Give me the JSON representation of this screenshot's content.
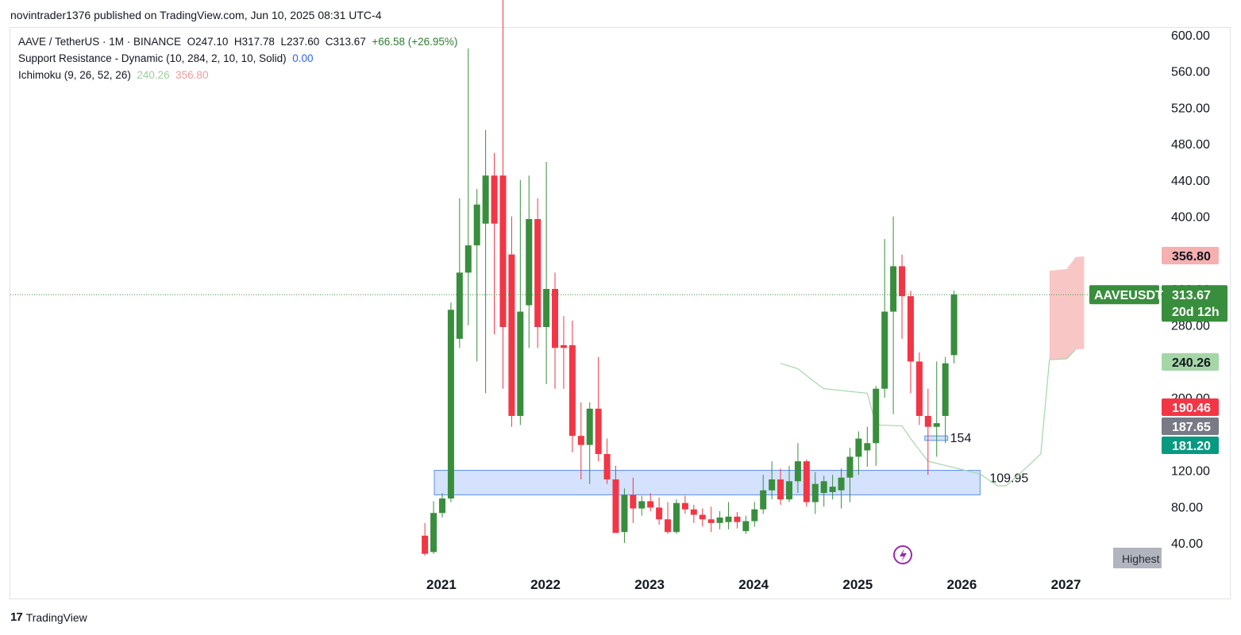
{
  "header": {
    "publisher": "novintrader1376 published on TradingView.com, Jun 10, 2025 08:31 UTC-4"
  },
  "legend": {
    "symbol": "AAVE / TetherUS · 1M · BINANCE",
    "open": "O247.10",
    "high": "H317.78",
    "low": "L237.60",
    "close": "C313.67",
    "change": "+66.58 (+26.95%)",
    "sr_name": "Support Resistance - Dynamic (10, 284, 2, 10, 10, Solid)",
    "sr_value": "0.00",
    "ichi_name": "Ichimoku (9, 26, 52, 26)",
    "ichi_value1": "240.26",
    "ichi_value2": "356.80"
  },
  "footer": {
    "brand": "TradingView"
  },
  "chart_data": {
    "type": "candlestick",
    "symbol": "AAVEUSDT",
    "interval": "1M",
    "ylim": [
      20,
      615
    ],
    "y_ticks": [
      "600.00",
      "560.00",
      "520.00",
      "480.00",
      "440.00",
      "400.00",
      "280.00",
      "120.00",
      "80.00",
      "40.00"
    ],
    "x_ticks": [
      "2021",
      "2022",
      "2023",
      "2024",
      "2025",
      "2026",
      "2027"
    ],
    "colors": {
      "up": "#388e3c",
      "down": "#f23645",
      "ichimoku_span_b": "#a5d6a7",
      "cloud": "#f8b8b8"
    },
    "candles": [
      {
        "t": "2020-11",
        "o": 48,
        "h": 62,
        "l": 26,
        "c": 28
      },
      {
        "t": "2020-12",
        "o": 30,
        "h": 86,
        "l": 28,
        "c": 73
      },
      {
        "t": "2021-01",
        "o": 73,
        "h": 95,
        "l": 68,
        "c": 89
      },
      {
        "t": "2021-02",
        "o": 89,
        "h": 305,
        "l": 85,
        "c": 297
      },
      {
        "t": "2021-03",
        "o": 265,
        "h": 420,
        "l": 255,
        "c": 338
      },
      {
        "t": "2021-04",
        "o": 338,
        "h": 585,
        "l": 280,
        "c": 368
      },
      {
        "t": "2021-05",
        "o": 368,
        "h": 430,
        "l": 240,
        "c": 413
      },
      {
        "t": "2021-06",
        "o": 392,
        "h": 495,
        "l": 205,
        "c": 445
      },
      {
        "t": "2021-07",
        "o": 445,
        "h": 470,
        "l": 270,
        "c": 392
      },
      {
        "t": "2021-08",
        "o": 445,
        "h": 700,
        "l": 210,
        "c": 278
      },
      {
        "t": "2021-09",
        "o": 358,
        "h": 400,
        "l": 168,
        "c": 180
      },
      {
        "t": "2021-10",
        "o": 180,
        "h": 440,
        "l": 170,
        "c": 295
      },
      {
        "t": "2021-11",
        "o": 302,
        "h": 445,
        "l": 255,
        "c": 397
      },
      {
        "t": "2021-12",
        "o": 397,
        "h": 420,
        "l": 255,
        "c": 278
      },
      {
        "t": "2022-01",
        "o": 278,
        "h": 460,
        "l": 215,
        "c": 320
      },
      {
        "t": "2022-02",
        "o": 320,
        "h": 338,
        "l": 210,
        "c": 255
      },
      {
        "t": "2022-03",
        "o": 258,
        "h": 290,
        "l": 210,
        "c": 255
      },
      {
        "t": "2022-04",
        "o": 258,
        "h": 285,
        "l": 140,
        "c": 158
      },
      {
        "t": "2022-05",
        "o": 158,
        "h": 195,
        "l": 110,
        "c": 148
      },
      {
        "t": "2022-06",
        "o": 148,
        "h": 195,
        "l": 105,
        "c": 188
      },
      {
        "t": "2022-07",
        "o": 188,
        "h": 245,
        "l": 130,
        "c": 138
      },
      {
        "t": "2022-08",
        "o": 138,
        "h": 155,
        "l": 105,
        "c": 110
      },
      {
        "t": "2022-09",
        "o": 110,
        "h": 125,
        "l": 55,
        "c": 51
      },
      {
        "t": "2022-10",
        "o": 52,
        "h": 100,
        "l": 40,
        "c": 93
      },
      {
        "t": "2022-11",
        "o": 93,
        "h": 112,
        "l": 62,
        "c": 78
      },
      {
        "t": "2022-12",
        "o": 78,
        "h": 92,
        "l": 70,
        "c": 86
      },
      {
        "t": "2023-01",
        "o": 86,
        "h": 95,
        "l": 75,
        "c": 79
      },
      {
        "t": "2023-02",
        "o": 79,
        "h": 90,
        "l": 60,
        "c": 66
      },
      {
        "t": "2023-03",
        "o": 66,
        "h": 85,
        "l": 50,
        "c": 52
      },
      {
        "t": "2023-04",
        "o": 52,
        "h": 88,
        "l": 50,
        "c": 84
      },
      {
        "t": "2023-05",
        "o": 84,
        "h": 92,
        "l": 72,
        "c": 77
      },
      {
        "t": "2023-06",
        "o": 77,
        "h": 82,
        "l": 62,
        "c": 71
      },
      {
        "t": "2023-07",
        "o": 71,
        "h": 78,
        "l": 58,
        "c": 66
      },
      {
        "t": "2023-08",
        "o": 66,
        "h": 80,
        "l": 52,
        "c": 62
      },
      {
        "t": "2023-09",
        "o": 62,
        "h": 75,
        "l": 55,
        "c": 68
      },
      {
        "t": "2023-10",
        "o": 63,
        "h": 85,
        "l": 55,
        "c": 69
      },
      {
        "t": "2023-11",
        "o": 69,
        "h": 74,
        "l": 56,
        "c": 63
      },
      {
        "t": "2023-12",
        "o": 53,
        "h": 70,
        "l": 50,
        "c": 64
      },
      {
        "t": "2024-01",
        "o": 64,
        "h": 85,
        "l": 58,
        "c": 77
      },
      {
        "t": "2024-02",
        "o": 77,
        "h": 115,
        "l": 72,
        "c": 98
      },
      {
        "t": "2024-03",
        "o": 98,
        "h": 130,
        "l": 88,
        "c": 110
      },
      {
        "t": "2024-04",
        "o": 110,
        "h": 122,
        "l": 82,
        "c": 88
      },
      {
        "t": "2024-05",
        "o": 88,
        "h": 125,
        "l": 85,
        "c": 108
      },
      {
        "t": "2024-06",
        "o": 108,
        "h": 150,
        "l": 95,
        "c": 130
      },
      {
        "t": "2024-07",
        "o": 130,
        "h": 132,
        "l": 80,
        "c": 85
      },
      {
        "t": "2024-08",
        "o": 85,
        "h": 118,
        "l": 72,
        "c": 105
      },
      {
        "t": "2024-09",
        "o": 95,
        "h": 114,
        "l": 80,
        "c": 108
      },
      {
        "t": "2024-10",
        "o": 96,
        "h": 115,
        "l": 88,
        "c": 102
      },
      {
        "t": "2024-11",
        "o": 98,
        "h": 122,
        "l": 78,
        "c": 112
      },
      {
        "t": "2024-12",
        "o": 112,
        "h": 145,
        "l": 85,
        "c": 135
      },
      {
        "t": "2025-01",
        "o": 135,
        "h": 163,
        "l": 115,
        "c": 155
      },
      {
        "t": "2025-02",
        "o": 142,
        "h": 168,
        "l": 124,
        "c": 150
      },
      {
        "t": "2025-03",
        "o": 150,
        "h": 213,
        "l": 125,
        "c": 210
      },
      {
        "t": "2025-04",
        "o": 210,
        "h": 375,
        "l": 200,
        "c": 295
      },
      {
        "t": "2025-05",
        "o": 295,
        "h": 400,
        "l": 182,
        "c": 345
      },
      {
        "t": "2025-06",
        "o": 345,
        "h": 358,
        "l": 265,
        "c": 312
      },
      {
        "t": "2025-07",
        "o": 312,
        "h": 318,
        "l": 205,
        "c": 240
      },
      {
        "t": "2025-08",
        "o": 240,
        "h": 250,
        "l": 170,
        "c": 180
      },
      {
        "t": "2025-09",
        "o": 180,
        "h": 210,
        "l": 115,
        "c": 168
      },
      {
        "t": "2025-10",
        "o": 168,
        "h": 240,
        "l": 135,
        "c": 172
      },
      {
        "t": "2025-11",
        "o": 180,
        "h": 245,
        "l": 150,
        "c": 238
      },
      {
        "t": "2025-12",
        "o": 247,
        "h": 318,
        "l": 238,
        "c": 314
      }
    ],
    "zones": [
      {
        "label": "109.95",
        "from": "2021-01",
        "to": "2026-03",
        "low": 93,
        "high": 120
      },
      {
        "label": "154",
        "from": "2025-09",
        "to": "2025-11",
        "low": 153,
        "high": 158
      }
    ],
    "ichimoku_span_b": [
      {
        "t": "2024-04",
        "v": 238
      },
      {
        "t": "2024-06",
        "v": 232
      },
      {
        "t": "2024-08",
        "v": 217
      },
      {
        "t": "2024-09",
        "v": 210
      },
      {
        "t": "2025-02",
        "v": 205
      },
      {
        "t": "2025-03",
        "v": 170
      },
      {
        "t": "2025-06",
        "v": 169
      },
      {
        "t": "2025-07",
        "v": 155
      },
      {
        "t": "2025-09",
        "v": 130
      },
      {
        "t": "2026-03",
        "v": 116
      },
      {
        "t": "2026-05",
        "v": 103
      },
      {
        "t": "2026-06",
        "v": 103
      },
      {
        "t": "2026-08",
        "v": 120
      },
      {
        "t": "2026-10",
        "v": 138
      },
      {
        "t": "2026-11",
        "v": 242
      },
      {
        "t": "2027-01",
        "v": 243
      },
      {
        "t": "2027-02",
        "v": 253
      }
    ],
    "cloud": {
      "from": "2026-11",
      "to": "2027-03",
      "upper": [
        {
          "t": "2026-11",
          "v": 340
        },
        {
          "t": "2027-01",
          "v": 342
        },
        {
          "t": "2027-02",
          "v": 355
        },
        {
          "t": "2027-03",
          "v": 356
        }
      ],
      "lower": [
        {
          "t": "2026-11",
          "v": 242
        },
        {
          "t": "2027-01",
          "v": 243
        },
        {
          "t": "2027-02",
          "v": 253
        },
        {
          "t": "2027-03",
          "v": 254
        }
      ]
    },
    "last_price": 313.67,
    "price_labels": [
      {
        "text": "356.80",
        "value": 356.8,
        "bg": "#f6b0b0",
        "fg": "#131722"
      },
      {
        "text": "313.67",
        "value": 313.67,
        "bg": "#388e3c",
        "fg": "#ffffff",
        "sub": "20d 12h",
        "tag": "AAVEUSDT"
      },
      {
        "text": "240.26",
        "value": 240.26,
        "bg": "#a5d6a7",
        "fg": "#131722"
      },
      {
        "text": "190.46",
        "value": 190.46,
        "bg": "#f23645",
        "fg": "#ffffff"
      },
      {
        "text": "187.65",
        "value": 187.65,
        "bg": "#787b86",
        "fg": "#ffffff"
      },
      {
        "text": "181.20",
        "value": 181.2,
        "bg": "#089981",
        "fg": "#ffffff"
      }
    ],
    "badge": "Highest"
  }
}
